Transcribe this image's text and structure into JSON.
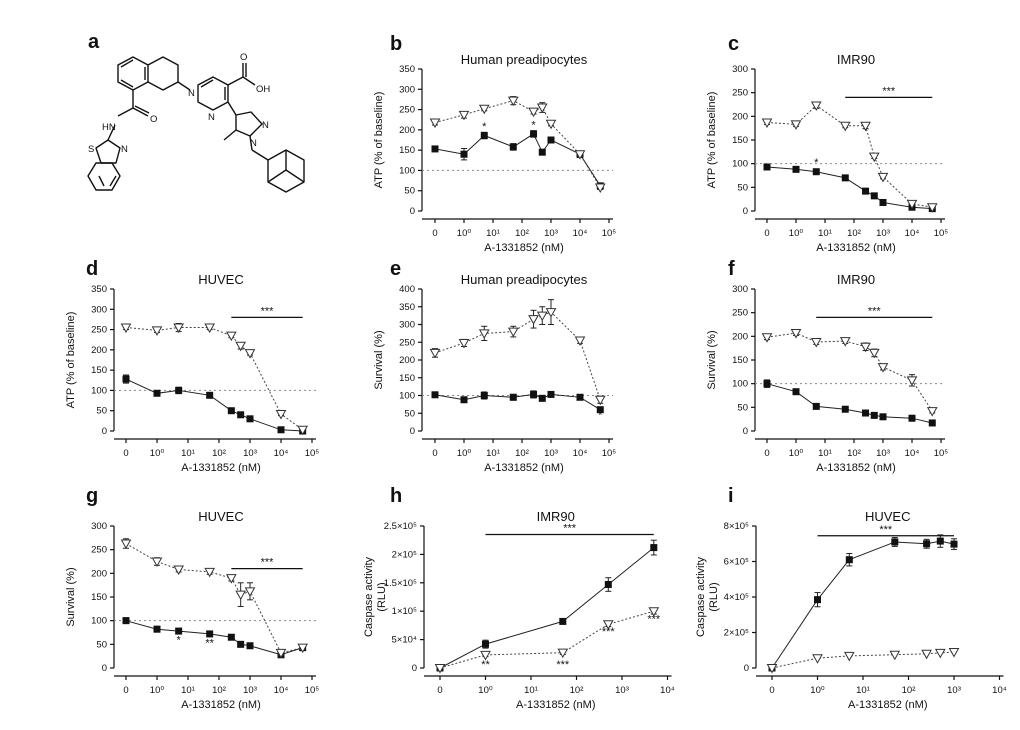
{
  "figure_letters": [
    "a",
    "b",
    "c",
    "d",
    "e",
    "f",
    "g",
    "h",
    "i"
  ],
  "molecule": {
    "letter": "a",
    "labels": {
      "hn": "HN",
      "o1": "O",
      "n_thz": "N",
      "s_thz": "S",
      "n_iq": "N",
      "n_py": "N",
      "o2": "O",
      "oh": "OH",
      "n_pz1": "N",
      "n_pz2": "N"
    }
  },
  "x_tick_labels": [
    "0",
    "10⁰",
    "10¹",
    "10²",
    "10³",
    "10⁴",
    "10⁵"
  ],
  "chart_data": [
    {
      "id": "b",
      "type": "line",
      "title": "Human preadipocytes",
      "xlabel": "A-1331852 (nM)",
      "ylabel": "ATP (% of baseline)",
      "xscale": "log with zero",
      "xlim": [
        0,
        100000
      ],
      "ylim": [
        0,
        350
      ],
      "yticks": [
        "0",
        "50",
        "100",
        "150",
        "200",
        "250",
        "300",
        "350"
      ],
      "baseline": 100,
      "series": [
        {
          "name": "solid squares",
          "style": "solid",
          "marker": "square",
          "x": [
            0,
            1,
            5,
            50,
            250,
            500,
            1000,
            10000,
            50000
          ],
          "y": [
            153,
            140,
            186,
            158,
            190,
            145,
            175,
            140,
            62
          ],
          "err": [
            6,
            14,
            8,
            8,
            8,
            5,
            6,
            8,
            5
          ]
        },
        {
          "name": "open triangles",
          "style": "dotted",
          "marker": "triangle-down",
          "x": [
            0,
            1,
            5,
            50,
            250,
            500,
            1000,
            10000,
            50000
          ],
          "y": [
            218,
            237,
            252,
            272,
            245,
            255,
            215,
            140,
            58
          ],
          "err": [
            6,
            8,
            5,
            10,
            6,
            12,
            5,
            6,
            5
          ]
        }
      ],
      "significance": [
        {
          "label": "*",
          "x": 5,
          "y": 200
        },
        {
          "label": "*",
          "x": 250,
          "y": 203
        }
      ]
    },
    {
      "id": "c",
      "type": "line",
      "title": "IMR90",
      "xlabel": "A-1331852 (nM)",
      "ylabel": "ATP (% of baseline)",
      "xscale": "log with zero",
      "xlim": [
        0,
        100000
      ],
      "ylim": [
        0,
        300
      ],
      "yticks": [
        "0",
        "50",
        "100",
        "150",
        "200",
        "250",
        "300"
      ],
      "baseline": 100,
      "series": [
        {
          "name": "solid squares",
          "style": "solid",
          "marker": "square",
          "x": [
            0,
            1,
            5,
            50,
            250,
            500,
            1000,
            10000,
            50000
          ],
          "y": [
            93,
            88,
            83,
            70,
            42,
            32,
            18,
            8,
            5
          ],
          "err": [
            3,
            3,
            3,
            3,
            3,
            3,
            3,
            2,
            2
          ]
        },
        {
          "name": "open triangles",
          "style": "dotted",
          "marker": "triangle-down",
          "x": [
            0,
            1,
            5,
            50,
            250,
            500,
            1000,
            10000,
            50000
          ],
          "y": [
            187,
            183,
            223,
            180,
            180,
            115,
            72,
            15,
            8
          ],
          "err": [
            4,
            4,
            6,
            4,
            6,
            4,
            4,
            3,
            2
          ]
        }
      ],
      "significance": [
        {
          "label": "*",
          "x": 5,
          "y": 95
        }
      ],
      "sig_bar": {
        "label": "***",
        "x1": 50,
        "x2": 50000,
        "y": 240
      }
    },
    {
      "id": "d",
      "type": "line",
      "title": "HUVEC",
      "xlabel": "A-1331852 (nM)",
      "ylabel": "ATP (% of baseline)",
      "xscale": "log with zero",
      "xlim": [
        0,
        100000
      ],
      "ylim": [
        0,
        350
      ],
      "yticks": [
        "0",
        "50",
        "100",
        "150",
        "200",
        "250",
        "300",
        "350"
      ],
      "baseline": 100,
      "series": [
        {
          "name": "solid squares",
          "style": "solid",
          "marker": "square",
          "x": [
            0,
            1,
            5,
            50,
            250,
            500,
            1000,
            10000,
            50000
          ],
          "y": [
            128,
            93,
            100,
            88,
            50,
            40,
            30,
            3,
            0
          ],
          "err": [
            10,
            4,
            8,
            5,
            4,
            4,
            3,
            2,
            1
          ]
        },
        {
          "name": "open triangles",
          "style": "dotted",
          "marker": "triangle-down",
          "x": [
            0,
            1,
            5,
            50,
            250,
            500,
            1000,
            10000,
            50000
          ],
          "y": [
            255,
            248,
            255,
            255,
            235,
            210,
            192,
            42,
            3
          ],
          "err": [
            5,
            5,
            10,
            5,
            5,
            8,
            5,
            4,
            2
          ]
        }
      ],
      "sig_bar": {
        "label": "***",
        "x1": 250,
        "x2": 50000,
        "y": 280
      }
    },
    {
      "id": "e",
      "type": "line",
      "title": "Human preadipocytes",
      "xlabel": "A-1331852 (nM)",
      "ylabel": "Survival (%)",
      "xscale": "log with zero",
      "xlim": [
        0,
        100000
      ],
      "ylim": [
        0,
        400
      ],
      "yticks": [
        "0",
        "50",
        "100",
        "150",
        "200",
        "250",
        "300",
        "350",
        "400"
      ],
      "baseline": 100,
      "series": [
        {
          "name": "solid squares",
          "style": "solid",
          "marker": "square",
          "x": [
            0,
            1,
            5,
            50,
            250,
            500,
            1000,
            10000,
            50000
          ],
          "y": [
            102,
            88,
            100,
            95,
            103,
            92,
            103,
            95,
            60
          ],
          "err": [
            6,
            6,
            10,
            8,
            10,
            6,
            6,
            6,
            5
          ]
        },
        {
          "name": "open triangles",
          "style": "dotted",
          "marker": "triangle-down",
          "x": [
            0,
            1,
            5,
            50,
            250,
            500,
            1000,
            10000,
            50000
          ],
          "y": [
            220,
            248,
            275,
            280,
            315,
            325,
            335,
            255,
            88
          ],
          "err": [
            12,
            10,
            20,
            15,
            25,
            25,
            35,
            8,
            10
          ]
        }
      ],
      "significance": [
        {
          "label": "*",
          "x": 50000,
          "y": 35
        }
      ]
    },
    {
      "id": "f",
      "type": "line",
      "title": "IMR90",
      "xlabel": "A-1331852 (nM)",
      "ylabel": "Survival (%)",
      "xscale": "log with zero",
      "xlim": [
        0,
        100000
      ],
      "ylim": [
        0,
        300
      ],
      "yticks": [
        "0",
        "50",
        "100",
        "150",
        "200",
        "250",
        "300"
      ],
      "baseline": 100,
      "series": [
        {
          "name": "solid squares",
          "style": "solid",
          "marker": "square",
          "x": [
            0,
            1,
            5,
            50,
            250,
            500,
            1000,
            10000,
            50000
          ],
          "y": [
            100,
            83,
            52,
            46,
            38,
            33,
            30,
            27,
            17
          ],
          "err": [
            8,
            4,
            4,
            3,
            3,
            3,
            3,
            3,
            3
          ]
        },
        {
          "name": "open triangles",
          "style": "dotted",
          "marker": "triangle-down",
          "x": [
            0,
            1,
            5,
            50,
            250,
            500,
            1000,
            10000,
            50000
          ],
          "y": [
            198,
            207,
            188,
            190,
            178,
            165,
            135,
            107,
            42
          ],
          "err": [
            5,
            5,
            5,
            5,
            8,
            8,
            6,
            12,
            4
          ]
        }
      ],
      "sig_bar": {
        "label": "***",
        "x1": 5,
        "x2": 50000,
        "y": 240
      }
    },
    {
      "id": "g",
      "type": "line",
      "title": "HUVEC",
      "xlabel": "A-1331852 (nM)",
      "ylabel": "Survival (%)",
      "xscale": "log with zero",
      "xlim": [
        0,
        100000
      ],
      "ylim": [
        0,
        300
      ],
      "yticks": [
        "0",
        "50",
        "100",
        "150",
        "200",
        "250",
        "300"
      ],
      "baseline": 100,
      "series": [
        {
          "name": "solid squares",
          "style": "solid",
          "marker": "square",
          "x": [
            0,
            1,
            5,
            50,
            250,
            500,
            1000,
            10000,
            50000
          ],
          "y": [
            100,
            82,
            78,
            72,
            65,
            50,
            47,
            28,
            43
          ],
          "err": [
            6,
            6,
            3,
            3,
            3,
            3,
            3,
            6,
            4
          ]
        },
        {
          "name": "open triangles",
          "style": "dotted",
          "marker": "triangle-down",
          "x": [
            0,
            1,
            5,
            50,
            250,
            500,
            1000,
            10000,
            50000
          ],
          "y": [
            263,
            225,
            208,
            203,
            190,
            155,
            162,
            32,
            43
          ],
          "err": [
            10,
            8,
            5,
            5,
            6,
            25,
            18,
            5,
            4
          ]
        }
      ],
      "significance": [
        {
          "label": "*",
          "x": 5,
          "y": 52
        },
        {
          "label": "**",
          "x": 50,
          "y": 45
        }
      ],
      "sig_bar": {
        "label": "***",
        "x1": 250,
        "x2": 50000,
        "y": 210
      }
    },
    {
      "id": "h",
      "type": "line",
      "title": "IMR90",
      "xlabel": "A-1331852 (nM)",
      "ylabel": [
        "Caspase activity",
        "(RLU)"
      ],
      "xscale": "log with zero",
      "xlim": [
        0,
        10000
      ],
      "ylim": [
        0,
        250000
      ],
      "yticks": [
        "0",
        "5×10⁴",
        "1×10⁵",
        "1.5×10⁵",
        "2×10⁵",
        "2.5×10⁵"
      ],
      "series": [
        {
          "name": "solid squares",
          "style": "solid",
          "marker": "square",
          "x": [
            0,
            1,
            50,
            500,
            5000
          ],
          "y": [
            0,
            42000,
            82000,
            147000,
            212000
          ],
          "err": [
            2000,
            7000,
            3000,
            12000,
            13000
          ]
        },
        {
          "name": "open triangles",
          "style": "dotted",
          "marker": "triangle-down",
          "x": [
            0,
            1,
            50,
            500,
            5000
          ],
          "y": [
            0,
            23000,
            27000,
            77000,
            100000
          ],
          "err": [
            2000,
            3000,
            3000,
            4000,
            5000
          ]
        }
      ],
      "significance": [
        {
          "label": "**",
          "x": 1,
          "y": 0
        },
        {
          "label": "***",
          "x": 50,
          "y": 0
        },
        {
          "label": "***",
          "x": 500,
          "y": 58000
        },
        {
          "label": "***",
          "x": 5000,
          "y": 80000
        }
      ],
      "sig_bar": {
        "label": "***",
        "x1": 1,
        "x2": 5000,
        "y": 235000
      }
    },
    {
      "id": "i",
      "type": "line",
      "title": "HUVEC",
      "xlabel": "A-1331852 (nM)",
      "ylabel": [
        "Caspase activity",
        "(RLU)"
      ],
      "xscale": "log with zero",
      "xlim": [
        0,
        10000
      ],
      "ylim": [
        0,
        800000
      ],
      "yticks": [
        "0",
        "2×10⁵",
        "4×10⁵",
        "6×10⁵",
        "8×10⁵"
      ],
      "series": [
        {
          "name": "solid squares",
          "style": "solid",
          "marker": "square",
          "x": [
            0,
            1,
            5,
            50,
            250,
            500,
            1000
          ],
          "y": [
            0,
            385000,
            610000,
            710000,
            700000,
            715000,
            698000
          ],
          "err": [
            5000,
            40000,
            35000,
            25000,
            25000,
            35000,
            30000
          ]
        },
        {
          "name": "open triangles",
          "style": "dotted",
          "marker": "triangle-down",
          "x": [
            0,
            1,
            5,
            50,
            250,
            500,
            1000
          ],
          "y": [
            0,
            55000,
            68000,
            75000,
            80000,
            85000,
            90000
          ],
          "err": [
            3000,
            4000,
            4000,
            4000,
            4000,
            5000,
            5000
          ]
        }
      ],
      "sig_bar": {
        "label": "***",
        "x1": 1,
        "x2": 1000,
        "y": 745000
      }
    }
  ]
}
